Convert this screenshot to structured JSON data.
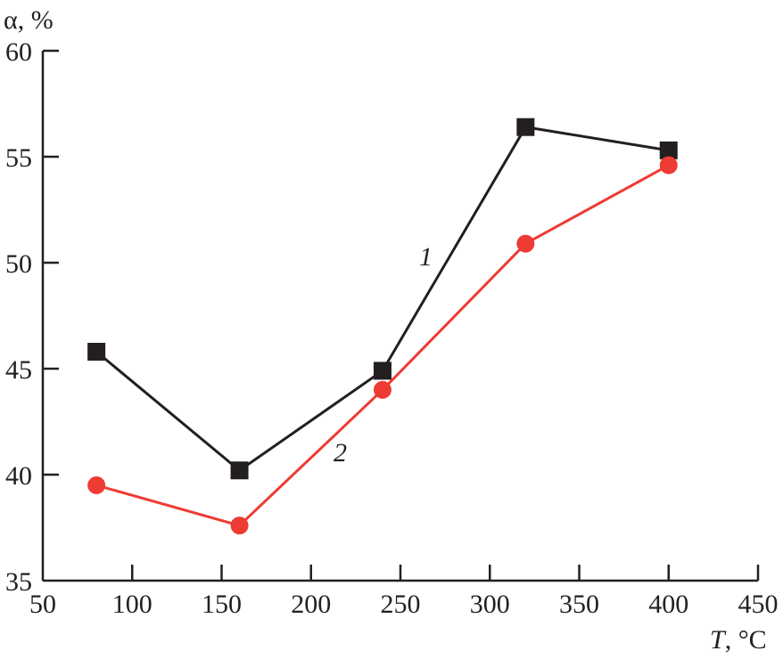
{
  "chart_data": {
    "type": "line",
    "title": "",
    "xlabel_italic": "T",
    "xlabel_rest": ", °C",
    "ylabel": "α,  %",
    "xlim": [
      50,
      450
    ],
    "ylim": [
      35,
      60
    ],
    "xticks": [
      50,
      100,
      150,
      200,
      250,
      300,
      350,
      400,
      450
    ],
    "yticks": [
      35,
      40,
      45,
      50,
      55,
      60
    ],
    "grid": false,
    "x": [
      80,
      160,
      240,
      320,
      400
    ],
    "series": [
      {
        "name": "1",
        "marker": "square",
        "color": "#231f20",
        "values": [
          45.8,
          40.2,
          44.9,
          56.4,
          55.3
        ]
      },
      {
        "name": "2",
        "marker": "circle",
        "color": "#ee3b33",
        "values": [
          39.5,
          37.6,
          44.0,
          50.9,
          54.6
        ]
      }
    ]
  }
}
